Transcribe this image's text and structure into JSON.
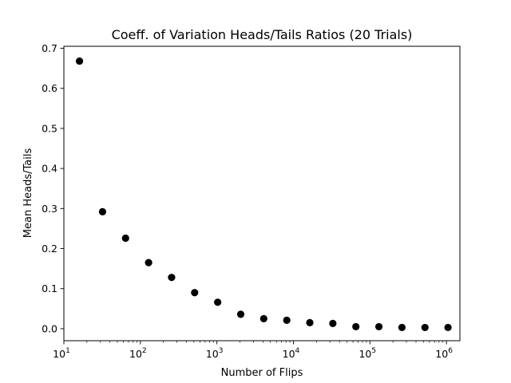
{
  "chart_data": {
    "type": "scatter",
    "title": "Coeff. of Variation Heads/Tails Ratios (20 Trials)",
    "xlabel": "Number of Flips",
    "ylabel": "Mean Heads/Tails",
    "xscale": "log",
    "xlim": [
      10,
      1500000
    ],
    "ylim": [
      -0.03,
      0.705
    ],
    "grid": false,
    "legend": "none",
    "marker_color": "#000000",
    "x_ticks": [
      {
        "value": 10,
        "base": "10",
        "exp": "1"
      },
      {
        "value": 100,
        "base": "10",
        "exp": "2"
      },
      {
        "value": 1000,
        "base": "10",
        "exp": "3"
      },
      {
        "value": 10000,
        "base": "10",
        "exp": "4"
      },
      {
        "value": 100000,
        "base": "10",
        "exp": "5"
      },
      {
        "value": 1000000,
        "base": "10",
        "exp": "6"
      }
    ],
    "y_ticks": [
      {
        "value": 0.0,
        "label": "0.0"
      },
      {
        "value": 0.1,
        "label": "0.1"
      },
      {
        "value": 0.2,
        "label": "0.2"
      },
      {
        "value": 0.3,
        "label": "0.3"
      },
      {
        "value": 0.4,
        "label": "0.4"
      },
      {
        "value": 0.5,
        "label": "0.5"
      },
      {
        "value": 0.6,
        "label": "0.6"
      },
      {
        "value": 0.7,
        "label": "0.7"
      }
    ],
    "x": [
      16,
      32,
      64,
      128,
      256,
      512,
      1024,
      2048,
      4096,
      8192,
      16384,
      32768,
      65536,
      131072,
      262144,
      524288,
      1048576
    ],
    "y": [
      0.668,
      0.292,
      0.226,
      0.165,
      0.128,
      0.09,
      0.066,
      0.036,
      0.025,
      0.021,
      0.015,
      0.013,
      0.005,
      0.005,
      0.003,
      0.003,
      0.003
    ]
  }
}
